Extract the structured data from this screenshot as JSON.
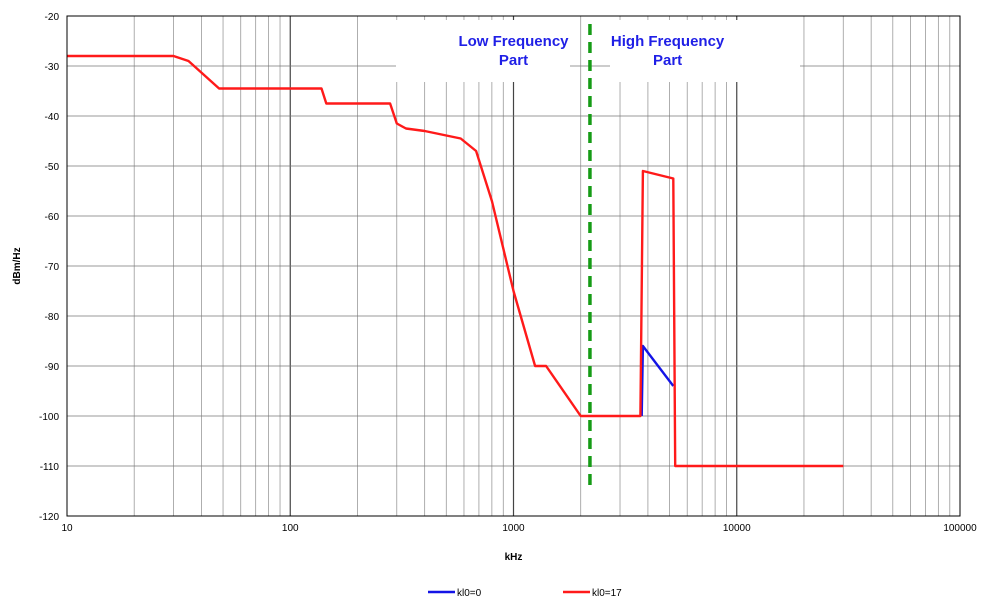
{
  "chart_data": {
    "type": "line",
    "title": "",
    "xlabel": "kHz",
    "ylabel": "dBm/Hz",
    "xscale": "log",
    "xlim": [
      10,
      100000
    ],
    "ylim": [
      -120,
      -20
    ],
    "x_ticks": [
      "10",
      "100",
      "1000",
      "10000",
      "100000"
    ],
    "y_ticks": [
      "-20",
      "-30",
      "-40",
      "-50",
      "-60",
      "-70",
      "-80",
      "-90",
      "-100",
      "-110",
      "-120"
    ],
    "grid": true,
    "legend_position": "bottom",
    "series": [
      {
        "name": "kl0=0",
        "color": "#1414e6",
        "x": [
          3750,
          3800,
          5200
        ],
        "y": [
          -100,
          -86,
          -94
        ]
      },
      {
        "name": "kl0=17",
        "color": "#ff1a1a",
        "x": [
          10,
          30,
          35,
          48,
          138,
          145,
          280,
          300,
          330,
          400,
          580,
          680,
          800,
          1000,
          1250,
          1400,
          2000,
          3700,
          3800,
          5200,
          5300,
          30000
        ],
        "y": [
          -28,
          -28,
          -29,
          -34.5,
          -34.5,
          -37.5,
          -37.5,
          -41.5,
          -42.5,
          -43,
          -44.5,
          -47,
          -57,
          -75,
          -90,
          -90,
          -100,
          -100,
          -51,
          -52.5,
          -110,
          -110
        ]
      }
    ],
    "divider": {
      "x": 2200,
      "color": "#169b16",
      "style": "dashed"
    },
    "annotations": [
      {
        "lines": [
          "Low Frequency",
          "Part"
        ],
        "x": 1000,
        "y": -22
      },
      {
        "lines": [
          "High Frequency",
          "Part"
        ],
        "x": 4900,
        "y": -22
      }
    ]
  }
}
